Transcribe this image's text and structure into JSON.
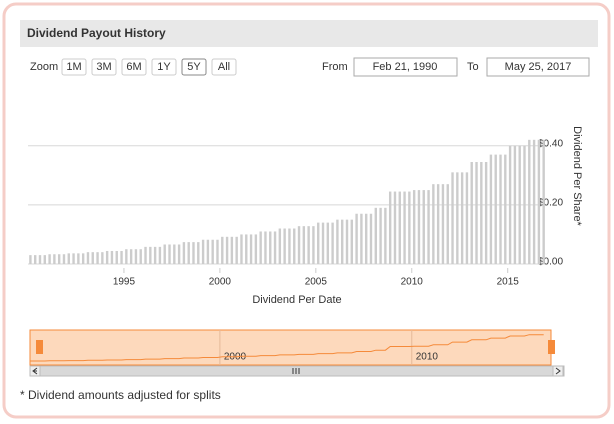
{
  "header": {
    "title": "Dividend Payout History"
  },
  "range_selector": {
    "zoom_label": "Zoom",
    "buttons": [
      "1M",
      "3M",
      "6M",
      "1Y",
      "5Y",
      "All"
    ],
    "active": "5Y",
    "from_label": "From",
    "from_date": "Feb 21, 1990",
    "to_label": "To",
    "to_date": "May 25, 2017"
  },
  "chart_data": {
    "type": "bar",
    "color": "#cccccc",
    "x_label": "Dividend Per Date",
    "y_label": "Dividend Per Share*",
    "x": [
      1990.125,
      1990.375,
      1990.625,
      1990.875,
      1991.125,
      1991.375,
      1991.625,
      1991.875,
      1992.125,
      1992.375,
      1992.625,
      1992.875,
      1993.125,
      1993.375,
      1993.625,
      1993.875,
      1994.125,
      1994.375,
      1994.625,
      1994.875,
      1995.125,
      1995.375,
      1995.625,
      1995.875,
      1996.125,
      1996.375,
      1996.625,
      1996.875,
      1997.125,
      1997.375,
      1997.625,
      1997.875,
      1998.125,
      1998.375,
      1998.625,
      1998.875,
      1999.125,
      1999.375,
      1999.625,
      1999.875,
      2000.125,
      2000.375,
      2000.625,
      2000.875,
      2001.125,
      2001.375,
      2001.625,
      2001.875,
      2002.125,
      2002.375,
      2002.625,
      2002.875,
      2003.125,
      2003.375,
      2003.625,
      2003.875,
      2004.125,
      2004.375,
      2004.625,
      2004.875,
      2005.125,
      2005.375,
      2005.625,
      2005.875,
      2006.125,
      2006.375,
      2006.625,
      2006.875,
      2007.125,
      2007.375,
      2007.625,
      2007.875,
      2008.125,
      2008.375,
      2008.625,
      2008.875,
      2009.125,
      2009.375,
      2009.625,
      2009.875,
      2010.125,
      2010.375,
      2010.625,
      2010.875,
      2011.125,
      2011.375,
      2011.625,
      2011.875,
      2012.125,
      2012.375,
      2012.625,
      2012.875,
      2013.125,
      2013.375,
      2013.625,
      2013.875,
      2014.125,
      2014.375,
      2014.625,
      2014.875,
      2015.125,
      2015.375,
      2015.625,
      2015.875,
      2016.125,
      2016.375,
      2016.625,
      2016.875
    ],
    "values": [
      0.03,
      0.03,
      0.03,
      0.03,
      0.033,
      0.033,
      0.033,
      0.033,
      0.036,
      0.036,
      0.036,
      0.036,
      0.04,
      0.04,
      0.04,
      0.04,
      0.044,
      0.044,
      0.044,
      0.044,
      0.05,
      0.05,
      0.05,
      0.05,
      0.058,
      0.058,
      0.058,
      0.058,
      0.066,
      0.066,
      0.066,
      0.066,
      0.074,
      0.074,
      0.074,
      0.074,
      0.082,
      0.082,
      0.082,
      0.082,
      0.092,
      0.092,
      0.092,
      0.092,
      0.1,
      0.1,
      0.1,
      0.1,
      0.11,
      0.11,
      0.11,
      0.11,
      0.12,
      0.12,
      0.12,
      0.12,
      0.128,
      0.128,
      0.128,
      0.128,
      0.14,
      0.14,
      0.14,
      0.14,
      0.15,
      0.15,
      0.15,
      0.15,
      0.17,
      0.17,
      0.17,
      0.17,
      0.19,
      0.19,
      0.19,
      0.245,
      0.245,
      0.245,
      0.245,
      0.245,
      0.25,
      0.25,
      0.25,
      0.25,
      0.27,
      0.27,
      0.27,
      0.27,
      0.31,
      0.31,
      0.31,
      0.31,
      0.345,
      0.345,
      0.345,
      0.345,
      0.37,
      0.37,
      0.37,
      0.37,
      0.4,
      0.4,
      0.4,
      0.4,
      0.42,
      0.42,
      0.42,
      0.42
    ],
    "xlim": [
      1990,
      2017.1
    ],
    "xticks": [
      1995,
      2000,
      2005,
      2010,
      2015
    ],
    "ylim": [
      0,
      0.46
    ],
    "yticks": [
      {
        "value": 0,
        "label": "$0.00"
      },
      {
        "value": 0.2,
        "label": "$0.20"
      },
      {
        "value": 0.4,
        "label": "$0.40"
      }
    ],
    "grid": true,
    "navigator_color": "#f58a3a",
    "navigator_xticks": [
      2000,
      2010
    ]
  },
  "footnote": "* Dividend amounts adjusted for splits"
}
